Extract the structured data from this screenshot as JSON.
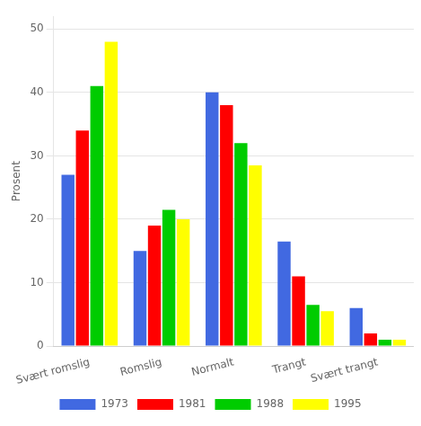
{
  "chart_data": {
    "type": "bar",
    "ylabel": "Prosent",
    "categories": [
      "Svært romslig",
      "Romslig",
      "Normalt",
      "Trangt",
      "Svært trangt"
    ],
    "series": [
      {
        "name": "1973",
        "color": "#4169E1",
        "values": [
          27,
          15,
          40,
          16.5,
          6
        ]
      },
      {
        "name": "1981",
        "color": "#FF0000",
        "values": [
          34,
          19,
          38,
          11,
          2
        ]
      },
      {
        "name": "1988",
        "color": "#00CC00",
        "values": [
          41,
          21.5,
          32,
          6.5,
          1
        ]
      },
      {
        "name": "1995",
        "color": "#FFFF00",
        "values": [
          48,
          20,
          28.5,
          5.5,
          1
        ]
      }
    ],
    "ylim": [
      0,
      52
    ],
    "yticks": [
      0,
      10,
      20,
      30,
      40,
      50
    ],
    "grid": true,
    "legend": "bottom"
  }
}
